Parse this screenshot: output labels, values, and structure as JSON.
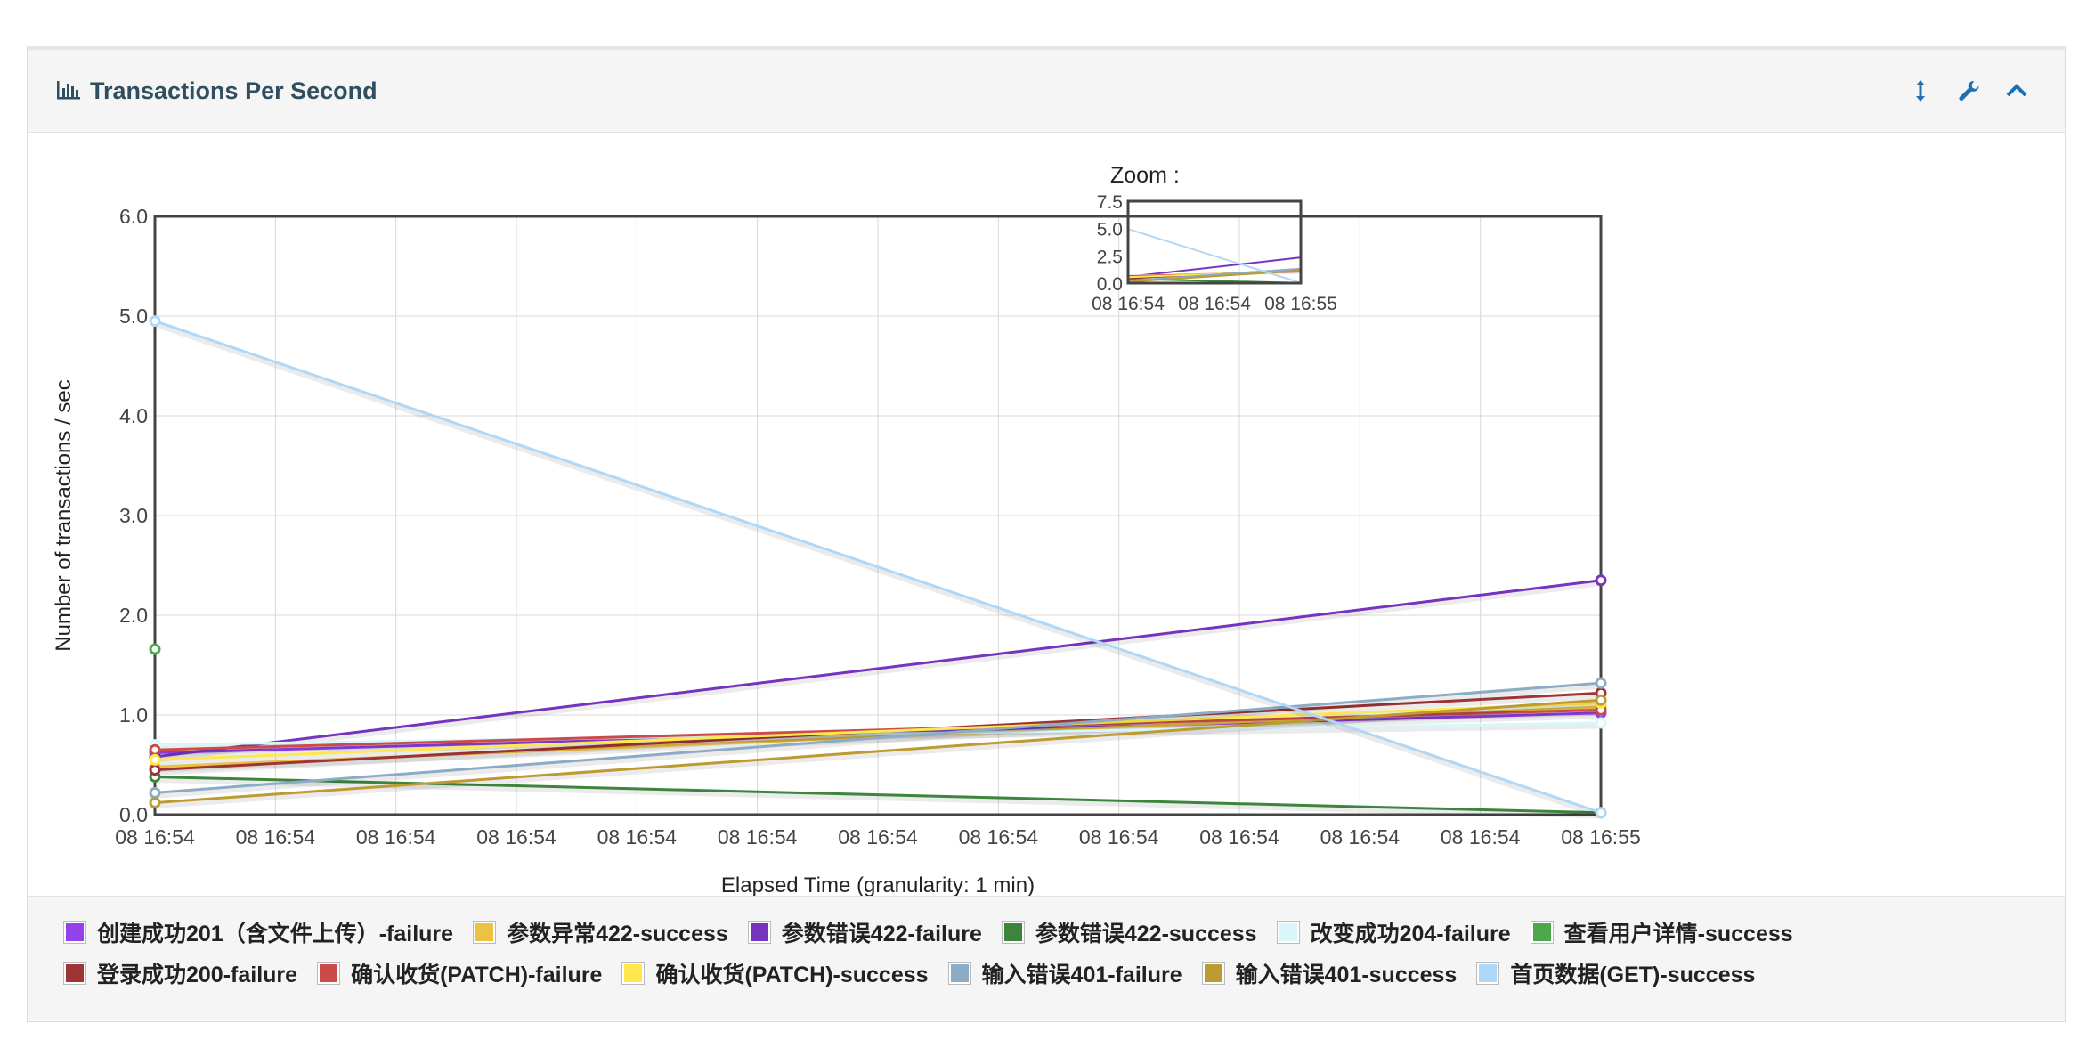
{
  "panel": {
    "title": "Transactions Per Second"
  },
  "icons": {
    "title": "bar-chart-icon",
    "tools": [
      "resize-vertical-icon",
      "wrench-icon",
      "chevron-up-icon"
    ]
  },
  "zoom_label": "Zoom :",
  "chart_data": {
    "type": "line",
    "title": "",
    "xlabel": "Elapsed Time (granularity: 1 min)",
    "ylabel": "Number of transactions / sec",
    "ylim": [
      0,
      6
    ],
    "yticks": [
      "0.0",
      "1.0",
      "2.0",
      "3.0",
      "4.0",
      "5.0",
      "6.0"
    ],
    "xticks": [
      "08 16:54",
      "08 16:54",
      "08 16:54",
      "08 16:54",
      "08 16:54",
      "08 16:54",
      "08 16:54",
      "08 16:54",
      "08 16:54",
      "08 16:54",
      "08 16:54",
      "08 16:54",
      "08 16:55"
    ],
    "grid": true,
    "x": [
      0,
      1
    ],
    "series": [
      {
        "name": "创建成功201（含文件上传）-failure",
        "color": "#9440ed",
        "values": [
          0.62,
          1.02
        ]
      },
      {
        "name": "参数异常422-success",
        "color": "#edc240",
        "values": [
          0.48,
          1.08
        ]
      },
      {
        "name": "参数错误422-failure",
        "color": "#7633bd",
        "values": [
          0.58,
          2.35
        ]
      },
      {
        "name": "参数错误422-success",
        "color": "#3d853d",
        "values": [
          0.38,
          0.02
        ]
      },
      {
        "name": "改变成功204-failure",
        "color": "#d9f7fa",
        "values": [
          0.7,
          0.92
        ]
      },
      {
        "name": "查看用户详情-success",
        "color": "#4da74d",
        "values": [
          1.66,
          null
        ]
      },
      {
        "name": "登录成功200-failure",
        "color": "#9e3434",
        "values": [
          0.45,
          1.22
        ]
      },
      {
        "name": "确认收货(PATCH)-failure",
        "color": "#cb4b4b",
        "values": [
          0.65,
          1.05
        ]
      },
      {
        "name": "确认收货(PATCH)-success",
        "color": "#ffe84d",
        "values": [
          0.55,
          1.12
        ]
      },
      {
        "name": "输入错误401-failure",
        "color": "#8cacc6",
        "values": [
          0.22,
          1.32
        ]
      },
      {
        "name": "输入错误401-success",
        "color": "#bd9b33",
        "values": [
          0.12,
          1.15
        ]
      },
      {
        "name": "首页数据(GET)-success",
        "color": "#afd8f8",
        "values": [
          4.95,
          0.02
        ]
      }
    ],
    "overview": {
      "ylim": [
        0,
        7.5
      ],
      "yticks": [
        "0.0",
        "2.5",
        "5.0",
        "7.5"
      ],
      "xticks": [
        "08 16:54",
        "08 16:54",
        "08 16:55"
      ]
    }
  },
  "legend": {
    "row1": [
      {
        "label": "创建成功201（含文件上传）-failure",
        "color": "#9440ed"
      },
      {
        "label": "参数异常422-success",
        "color": "#edc240"
      },
      {
        "label": "参数错误422-failure",
        "color": "#7633bd"
      },
      {
        "label": "参数错误422-success",
        "color": "#3d853d"
      },
      {
        "label": "改变成功204-failure",
        "color": "#d9f7fa"
      },
      {
        "label": "查看用户详情-success",
        "color": "#4da74d"
      }
    ],
    "row2": [
      {
        "label": "登录成功200-failure",
        "color": "#9e3434"
      },
      {
        "label": "确认收货(PATCH)-failure",
        "color": "#cb4b4b"
      },
      {
        "label": "确认收货(PATCH)-success",
        "color": "#ffe84d"
      },
      {
        "label": "输入错误401-failure",
        "color": "#8cacc6"
      },
      {
        "label": "输入错误401-success",
        "color": "#bd9b33"
      },
      {
        "label": "首页数据(GET)-success",
        "color": "#afd8f8"
      }
    ]
  }
}
